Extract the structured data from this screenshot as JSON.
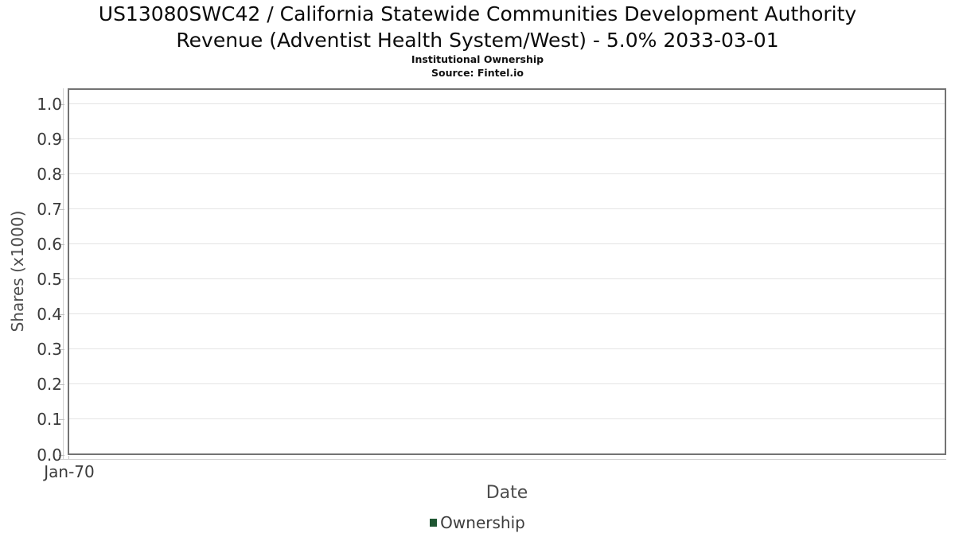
{
  "header": {
    "title_line1": "US13080SWC42 / California Statewide Communities Development Authority",
    "title_line2": "Revenue (Adventist Health System/West) - 5.0% 2033-03-01",
    "subtitle": "Institutional Ownership",
    "source": "Source: Fintel.io"
  },
  "chart_data": {
    "type": "line",
    "title": "US13080SWC42 / California Statewide Communities Development Authority Revenue (Adventist Health System/West) - 5.0% 2033-03-01",
    "subtitle": "Institutional Ownership",
    "source": "Source: Fintel.io",
    "xlabel": "Date",
    "ylabel": "Shares (x1000)",
    "xticklabels": [
      "Jan-70"
    ],
    "yticks": [
      {
        "label": "0.0",
        "value": 0.0
      },
      {
        "label": "0.1",
        "value": 0.1
      },
      {
        "label": "0.2",
        "value": 0.2
      },
      {
        "label": "0.3",
        "value": 0.3
      },
      {
        "label": "0.4",
        "value": 0.4
      },
      {
        "label": "0.5",
        "value": 0.5
      },
      {
        "label": "0.6",
        "value": 0.6
      },
      {
        "label": "0.7",
        "value": 0.7
      },
      {
        "label": "0.8",
        "value": 0.8
      },
      {
        "label": "0.9",
        "value": 0.9
      },
      {
        "label": "1.0",
        "value": 1.0
      }
    ],
    "ylim": [
      0.0,
      1.05
    ],
    "grid": true,
    "legend_position": "bottom",
    "legend": [
      {
        "label": "Ownership",
        "color": "#1e5632"
      }
    ],
    "series": [
      {
        "name": "Ownership",
        "x": [],
        "y": []
      }
    ]
  },
  "colors": {
    "plot_border": "#737373",
    "gridline": "#e4e4e4",
    "axis_line": "#d4d4d4",
    "tick_mark": "#c2c2c2",
    "tick_text": "#3a3a3a",
    "axis_label_text": "#4d4d4d",
    "legend_green": "#1e5632"
  }
}
